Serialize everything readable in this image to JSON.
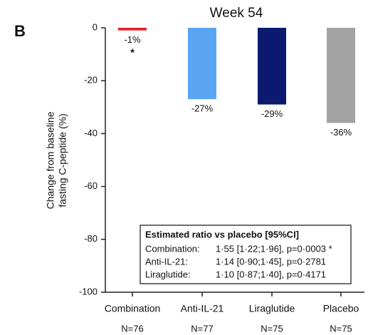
{
  "chart_data": {
    "type": "bar",
    "panel_label": "B",
    "title": "Week 54",
    "y_label": [
      "Change from baseline",
      "fasting C-peptide (%)"
    ],
    "categories": [
      "Combination",
      "Anti-IL-21",
      "Liraglutide",
      "Placebo"
    ],
    "n_labels": [
      "N=76",
      "N=77",
      "N=75",
      "N=75"
    ],
    "values": [
      -1,
      -27,
      -29,
      -36
    ],
    "value_labels": [
      "-1%",
      "-27%",
      "-29%",
      "-36%"
    ],
    "colors": [
      "#e8202a",
      "#5aa5f2",
      "#0b1a6e",
      "#a3a3a3"
    ],
    "annotation": "*",
    "ylim": [
      -100,
      0
    ],
    "yticks": [
      0,
      -20,
      -40,
      -60,
      -80,
      -100
    ],
    "stats_box": {
      "title": "Estimated ratio vs placebo [95%CI]",
      "rows": [
        [
          "Combination:",
          "1·55 [1·22;1·96], p=0·0003 *"
        ],
        [
          "Anti-IL-21:",
          "1·14 [0·90;1·45], p=0·2781"
        ],
        [
          "Liraglutide:",
          "1·10 [0·87;1·40], p=0·4171"
        ]
      ]
    }
  }
}
